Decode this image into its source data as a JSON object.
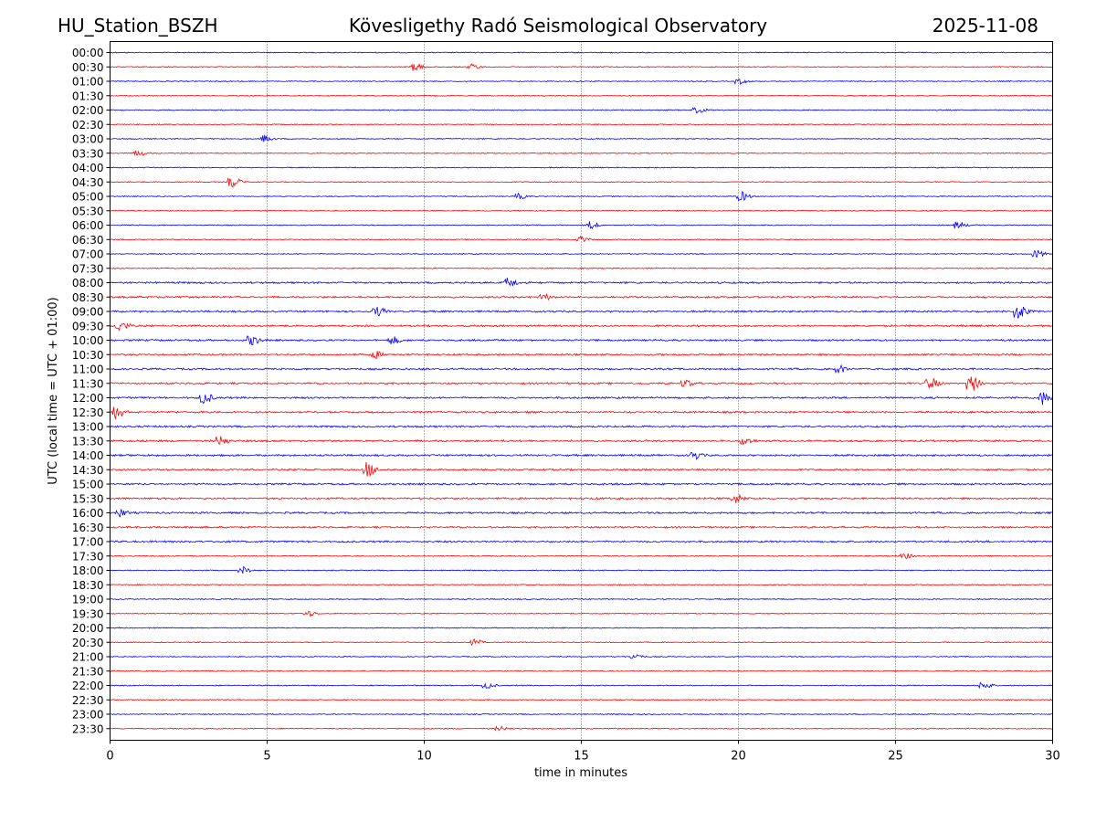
{
  "header": {
    "station": "HU_Station_BSZH",
    "title": "Kövesligethy Radó Seismological Observatory",
    "date": "2025-11-08"
  },
  "chart_data": {
    "type": "line",
    "chart_kind": "helicorder",
    "xlabel": "time in minutes",
    "ylabel": "UTC (local time = UTC + 01:00)",
    "xlim": [
      0,
      30
    ],
    "xticks": [
      0,
      5,
      10,
      15,
      20,
      25,
      30
    ],
    "grid": "vertical dotted lines every 5 minutes",
    "trace_colors": [
      "#0000ff",
      "#ff0000"
    ],
    "rows": [
      "00:00",
      "00:30",
      "01:00",
      "01:30",
      "02:00",
      "02:30",
      "03:00",
      "03:30",
      "04:00",
      "04:30",
      "05:00",
      "05:30",
      "06:00",
      "06:30",
      "07:00",
      "07:30",
      "08:00",
      "08:30",
      "09:00",
      "09:30",
      "10:00",
      "10:30",
      "11:00",
      "11:30",
      "12:00",
      "12:30",
      "13:00",
      "13:30",
      "14:00",
      "14:30",
      "15:00",
      "15:30",
      "16:00",
      "16:30",
      "17:00",
      "17:30",
      "18:00",
      "18:30",
      "19:00",
      "19:30",
      "20:00",
      "20:30",
      "21:00",
      "21:30",
      "22:00",
      "22:30",
      "23:00",
      "23:30"
    ],
    "events": [
      {
        "row": "00:30",
        "minute": 9.7,
        "amp": 4
      },
      {
        "row": "00:30",
        "minute": 11.5,
        "amp": 3
      },
      {
        "row": "01:00",
        "minute": 20.0,
        "amp": 3
      },
      {
        "row": "02:00",
        "minute": 18.7,
        "amp": 3
      },
      {
        "row": "03:00",
        "minute": 4.9,
        "amp": 4
      },
      {
        "row": "03:30",
        "minute": 0.9,
        "amp": 3
      },
      {
        "row": "04:30",
        "minute": 3.9,
        "amp": 6
      },
      {
        "row": "05:00",
        "minute": 20.1,
        "amp": 5
      },
      {
        "row": "05:00",
        "minute": 13.0,
        "amp": 3
      },
      {
        "row": "06:00",
        "minute": 27.0,
        "amp": 4
      },
      {
        "row": "06:00",
        "minute": 15.3,
        "amp": 4
      },
      {
        "row": "06:30",
        "minute": 15.0,
        "amp": 3
      },
      {
        "row": "07:00",
        "minute": 29.5,
        "amp": 4
      },
      {
        "row": "08:00",
        "minute": 12.7,
        "amp": 5
      },
      {
        "row": "08:30",
        "minute": 13.8,
        "amp": 3
      },
      {
        "row": "09:00",
        "minute": 28.9,
        "amp": 9
      },
      {
        "row": "09:00",
        "minute": 8.5,
        "amp": 5
      },
      {
        "row": "09:30",
        "minute": 0.3,
        "amp": 6
      },
      {
        "row": "10:00",
        "minute": 4.5,
        "amp": 5
      },
      {
        "row": "10:00",
        "minute": 9.0,
        "amp": 4
      },
      {
        "row": "10:30",
        "minute": 8.4,
        "amp": 4
      },
      {
        "row": "11:00",
        "minute": 23.2,
        "amp": 4
      },
      {
        "row": "11:30",
        "minute": 27.4,
        "amp": 9
      },
      {
        "row": "11:30",
        "minute": 26.1,
        "amp": 6
      },
      {
        "row": "11:30",
        "minute": 18.3,
        "amp": 4
      },
      {
        "row": "12:00",
        "minute": 29.7,
        "amp": 7
      },
      {
        "row": "12:00",
        "minute": 3.0,
        "amp": 6
      },
      {
        "row": "12:30",
        "minute": 0.2,
        "amp": 7
      },
      {
        "row": "13:30",
        "minute": 3.5,
        "amp": 5
      },
      {
        "row": "13:30",
        "minute": 20.2,
        "amp": 4
      },
      {
        "row": "14:00",
        "minute": 18.6,
        "amp": 4
      },
      {
        "row": "14:30",
        "minute": 8.2,
        "amp": 8
      },
      {
        "row": "15:30",
        "minute": 19.9,
        "amp": 5
      },
      {
        "row": "16:00",
        "minute": 0.3,
        "amp": 4
      },
      {
        "row": "17:30",
        "minute": 25.3,
        "amp": 3
      },
      {
        "row": "18:00",
        "minute": 4.2,
        "amp": 4
      },
      {
        "row": "19:30",
        "minute": 6.3,
        "amp": 3
      },
      {
        "row": "20:30",
        "minute": 11.6,
        "amp": 3
      },
      {
        "row": "21:00",
        "minute": 16.7,
        "amp": 3
      },
      {
        "row": "22:00",
        "minute": 27.8,
        "amp": 4
      },
      {
        "row": "22:00",
        "minute": 12.0,
        "amp": 3
      },
      {
        "row": "23:30",
        "minute": 12.4,
        "amp": 2
      }
    ]
  }
}
